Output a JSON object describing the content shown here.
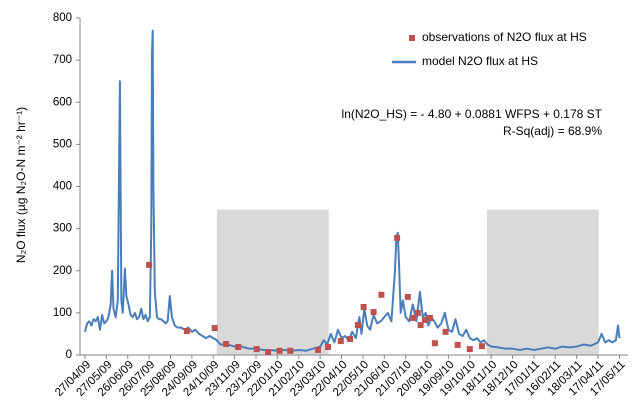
{
  "chart_data": {
    "type": "line",
    "y_label": "N₂O flux (µg N₂O-N m⁻² hr⁻¹)",
    "annotations": [
      "ln(N2O_HS) = - 4.80 + 0.0881 WFPS + 0.178 ST",
      "R-Sq(adj) = 68.9%"
    ],
    "xlim": [
      0,
      755
    ],
    "ylim": [
      0,
      800
    ],
    "yticks": [
      0,
      100,
      200,
      300,
      400,
      500,
      600,
      700,
      800
    ],
    "xticks": [
      {
        "value": 0,
        "label": "27/04/09"
      },
      {
        "value": 30,
        "label": "27/05/09"
      },
      {
        "value": 60,
        "label": "26/06/09"
      },
      {
        "value": 90,
        "label": "26/07/09"
      },
      {
        "value": 120,
        "label": "25/08/09"
      },
      {
        "value": 150,
        "label": "24/09/09"
      },
      {
        "value": 180,
        "label": "24/10/09"
      },
      {
        "value": 210,
        "label": "23/11/09"
      },
      {
        "value": 240,
        "label": "23/12/09"
      },
      {
        "value": 270,
        "label": "22/01/10"
      },
      {
        "value": 300,
        "label": "21/02/10"
      },
      {
        "value": 330,
        "label": "23/03/10"
      },
      {
        "value": 360,
        "label": "22/04/10"
      },
      {
        "value": 390,
        "label": "22/05/10"
      },
      {
        "value": 420,
        "label": "21/06/10"
      },
      {
        "value": 450,
        "label": "21/07/10"
      },
      {
        "value": 480,
        "label": "20/08/10"
      },
      {
        "value": 510,
        "label": "19/09/10"
      },
      {
        "value": 540,
        "label": "19/10/10"
      },
      {
        "value": 570,
        "label": "18/11/10"
      },
      {
        "value": 600,
        "label": "18/12/10"
      },
      {
        "value": 630,
        "label": "17/01/11"
      },
      {
        "value": 660,
        "label": "16/02/11"
      },
      {
        "value": 690,
        "label": "18/03/11"
      },
      {
        "value": 720,
        "label": "17/04/11"
      },
      {
        "value": 750,
        "label": "17/05/11"
      }
    ],
    "shaded_regions": [
      {
        "x": [
          185,
          342
        ],
        "y": 345,
        "color": "#d9d9d9"
      },
      {
        "x": [
          564,
          721
        ],
        "y": 345,
        "color": "#d9d9d9"
      }
    ],
    "series": [
      {
        "name": "observations of N2O flux at HS",
        "type": "scatter",
        "color": "#c0504d",
        "x": [
          90,
          143,
          182,
          198,
          215,
          241,
          257,
          273,
          288,
          327,
          341,
          359,
          372,
          383,
          391,
          405,
          416,
          438,
          453,
          461,
          467,
          471,
          477,
          484,
          491,
          506,
          523,
          540,
          557
        ],
        "values": [
          214,
          57,
          64,
          26,
          19,
          14,
          7,
          10,
          10,
          12,
          19,
          33,
          38,
          71,
          114,
          102,
          143,
          278,
          138,
          88,
          100,
          71,
          83,
          88,
          28,
          55,
          24,
          14,
          21
        ]
      },
      {
        "name": "model N2O flux at HS",
        "type": "line",
        "color": "#4a7ebb",
        "x": [
          0,
          3,
          6,
          9,
          12,
          15,
          18,
          21,
          24,
          27,
          30,
          33,
          36,
          38,
          40,
          43,
          46,
          49,
          51,
          53,
          56,
          58,
          61,
          64,
          67,
          70,
          73,
          76,
          79,
          82,
          85,
          88,
          91,
          93,
          94,
          95,
          96,
          98,
          101,
          104,
          107,
          110,
          113,
          116,
          119,
          122,
          126,
          130,
          135,
          140,
          145,
          150,
          155,
          160,
          165,
          170,
          175,
          180,
          185,
          190,
          200,
          210,
          220,
          230,
          240,
          250,
          260,
          270,
          280,
          290,
          300,
          310,
          320,
          330,
          335,
          340,
          345,
          350,
          355,
          360,
          365,
          370,
          375,
          380,
          385,
          388,
          392,
          396,
          400,
          405,
          410,
          415,
          420,
          425,
          430,
          435,
          437,
          439,
          441,
          443,
          446,
          450,
          455,
          460,
          465,
          470,
          474,
          478,
          482,
          486,
          490,
          495,
          500,
          505,
          510,
          515,
          520,
          525,
          530,
          535,
          540,
          545,
          550,
          555,
          560,
          565,
          570,
          580,
          590,
          600,
          610,
          620,
          630,
          640,
          650,
          660,
          670,
          680,
          690,
          700,
          710,
          720,
          725,
          730,
          735,
          740,
          745,
          748,
          750
        ],
        "values": [
          55,
          75,
          80,
          70,
          85,
          80,
          90,
          60,
          95,
          75,
          80,
          90,
          120,
          200,
          110,
          90,
          130,
          650,
          130,
          100,
          205,
          140,
          120,
          95,
          90,
          100,
          85,
          90,
          110,
          85,
          95,
          80,
          90,
          300,
          715,
          770,
          400,
          150,
          90,
          85,
          85,
          80,
          75,
          80,
          140,
          90,
          70,
          65,
          65,
          60,
          65,
          55,
          60,
          50,
          45,
          40,
          45,
          40,
          35,
          25,
          25,
          20,
          20,
          15,
          15,
          12,
          12,
          10,
          12,
          10,
          12,
          10,
          15,
          20,
          35,
          25,
          50,
          30,
          60,
          40,
          45,
          35,
          55,
          40,
          90,
          50,
          110,
          70,
          60,
          95,
          75,
          80,
          90,
          100,
          80,
          200,
          280,
          290,
          200,
          100,
          130,
          90,
          80,
          120,
          80,
          150,
          90,
          100,
          70,
          90,
          80,
          65,
          75,
          100,
          60,
          55,
          85,
          50,
          45,
          60,
          40,
          35,
          40,
          30,
          35,
          25,
          20,
          18,
          15,
          15,
          12,
          15,
          12,
          15,
          18,
          15,
          20,
          18,
          20,
          25,
          22,
          30,
          50,
          30,
          35,
          30,
          35,
          70,
          40
        ]
      }
    ]
  }
}
